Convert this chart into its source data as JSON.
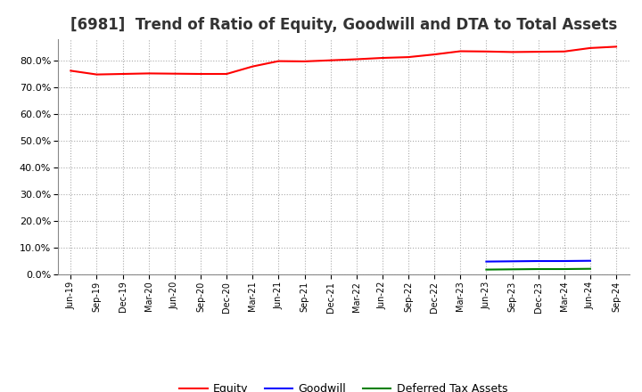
{
  "title": "[6981]  Trend of Ratio of Equity, Goodwill and DTA to Total Assets",
  "x_labels": [
    "Jun-19",
    "Sep-19",
    "Dec-19",
    "Mar-20",
    "Jun-20",
    "Sep-20",
    "Dec-20",
    "Mar-21",
    "Jun-21",
    "Sep-21",
    "Dec-21",
    "Mar-22",
    "Jun-22",
    "Sep-22",
    "Dec-22",
    "Mar-23",
    "Jun-23",
    "Sep-23",
    "Dec-23",
    "Mar-24",
    "Jun-24",
    "Sep-24"
  ],
  "equity": [
    76.2,
    74.8,
    75.0,
    75.2,
    75.1,
    75.0,
    75.0,
    77.8,
    79.8,
    79.7,
    80.1,
    80.5,
    81.0,
    81.3,
    82.3,
    83.5,
    83.4,
    83.2,
    83.3,
    83.4,
    84.7,
    85.2
  ],
  "goodwill": [
    null,
    null,
    null,
    null,
    null,
    null,
    null,
    null,
    null,
    null,
    null,
    null,
    null,
    null,
    null,
    null,
    4.8,
    4.9,
    5.0,
    5.0,
    5.1,
    null
  ],
  "dta": [
    null,
    null,
    null,
    null,
    null,
    null,
    null,
    null,
    null,
    null,
    null,
    null,
    null,
    null,
    null,
    null,
    1.8,
    1.9,
    2.0,
    2.0,
    2.1,
    null
  ],
  "equity_color": "#FF0000",
  "goodwill_color": "#0000FF",
  "dta_color": "#008000",
  "bg_color": "#FFFFFF",
  "plot_bg_color": "#FFFFFF",
  "grid_color": "#AAAAAA",
  "ylim": [
    0.0,
    88.0
  ],
  "yticks": [
    0.0,
    10.0,
    20.0,
    30.0,
    40.0,
    50.0,
    60.0,
    70.0,
    80.0
  ],
  "title_fontsize": 12,
  "legend_labels": [
    "Equity",
    "Goodwill",
    "Deferred Tax Assets"
  ]
}
